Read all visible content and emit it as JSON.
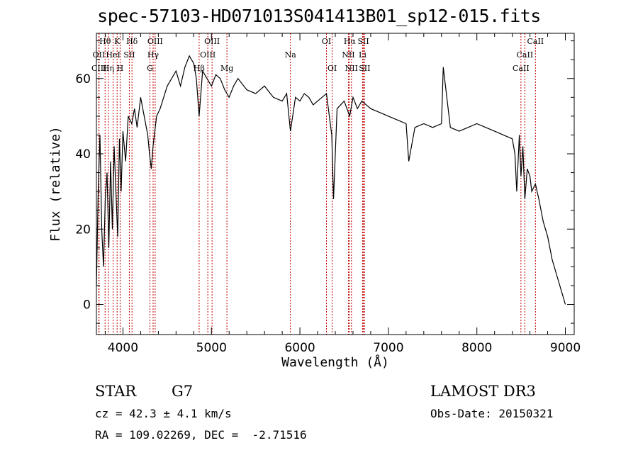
{
  "header": {
    "title": "spec-57103-HD071013S041413B01_sp12-015.fits"
  },
  "info": {
    "object_class": "STAR",
    "subclass": "G7",
    "survey": "LAMOST DR3",
    "redshift": "cz = 42.3 ± 4.1 km/s",
    "obs_date": "Obs-Date: 20150321",
    "coords": "RA = 109.02269, DEC =  -2.71516"
  },
  "chart_data": {
    "type": "line",
    "xlabel": "Wavelength (Å)",
    "ylabel": "Flux (relative)",
    "xlim": [
      3700,
      9100
    ],
    "ylim": [
      -8,
      72
    ],
    "x_ticks": [
      4000,
      5000,
      6000,
      7000,
      8000,
      9000
    ],
    "y_ticks": [
      0,
      20,
      40,
      60
    ],
    "grid": false,
    "series": [
      {
        "x": [
          3700,
          3720,
          3740,
          3760,
          3780,
          3800,
          3820,
          3840,
          3860,
          3880,
          3900,
          3920,
          3940,
          3960,
          3980,
          4000,
          4030,
          4060,
          4100,
          4130,
          4160,
          4200,
          4240,
          4280,
          4300,
          4320,
          4340,
          4380,
          4420,
          4460,
          4500,
          4550,
          4600,
          4650,
          4700,
          4750,
          4800,
          4830,
          4861,
          4900,
          4950,
          5000,
          5050,
          5100,
          5150,
          5200,
          5250,
          5300,
          5400,
          5500,
          5600,
          5700,
          5800,
          5850,
          5893,
          5950,
          6000,
          6050,
          6100,
          6150,
          6200,
          6250,
          6300,
          6360,
          6380,
          6420,
          6500,
          6563,
          6600,
          6650,
          6700,
          6750,
          6800,
          6900,
          7000,
          7100,
          7200,
          7230,
          7300,
          7400,
          7500,
          7600,
          7620,
          7700,
          7800,
          7900,
          8000,
          8100,
          8200,
          8300,
          8400,
          8430,
          8450,
          8480,
          8498,
          8520,
          8542,
          8570,
          8600,
          8620,
          8662,
          8700,
          8750,
          8800,
          8850,
          8900,
          8950,
          9000
        ],
        "y": [
          5,
          30,
          45,
          20,
          10,
          28,
          35,
          15,
          38,
          20,
          42,
          30,
          18,
          44,
          30,
          46,
          38,
          50,
          48,
          52,
          47,
          55,
          50,
          45,
          40,
          36,
          42,
          50,
          52,
          55,
          58,
          60,
          62,
          58,
          63,
          66,
          64,
          60,
          50,
          62,
          60,
          58,
          61,
          60,
          57,
          55,
          58,
          60,
          57,
          56,
          58,
          55,
          54,
          56,
          46,
          55,
          54,
          56,
          55,
          53,
          54,
          55,
          56,
          45,
          28,
          52,
          54,
          50,
          55,
          52,
          54,
          53,
          52,
          51,
          50,
          49,
          48,
          38,
          47,
          48,
          47,
          48,
          63,
          47,
          46,
          47,
          48,
          47,
          46,
          45,
          44,
          40,
          30,
          45,
          34,
          42,
          28,
          36,
          34,
          30,
          32,
          28,
          22,
          18,
          12,
          8,
          4,
          0
        ]
      }
    ],
    "line_markers": [
      {
        "label": "Hθ",
        "x": 3798,
        "row": 0
      },
      {
        "label": "K",
        "x": 3934,
        "row": 0
      },
      {
        "label": "Hδ",
        "x": 4102,
        "row": 0
      },
      {
        "label": "OIII",
        "x": 4364,
        "row": 0
      },
      {
        "label": "OIII",
        "x": 5007,
        "row": 0
      },
      {
        "label": "OI",
        "x": 6300,
        "row": 0
      },
      {
        "label": "Hα",
        "x": 6563,
        "row": 0
      },
      {
        "label": "SII",
        "x": 6717,
        "row": 0
      },
      {
        "label": "CaII",
        "x": 8662,
        "row": 0
      },
      {
        "label": "OII",
        "x": 3727,
        "row": 1
      },
      {
        "label": "HeI",
        "x": 3889,
        "row": 1
      },
      {
        "label": "SII",
        "x": 4072,
        "row": 1
      },
      {
        "label": "Hγ",
        "x": 4341,
        "row": 1
      },
      {
        "label": "OIII",
        "x": 4959,
        "row": 1
      },
      {
        "label": "Na",
        "x": 5893,
        "row": 1
      },
      {
        "label": "NII",
        "x": 6548,
        "row": 1
      },
      {
        "label": "Li",
        "x": 6708,
        "row": 1
      },
      {
        "label": "CaII",
        "x": 8542,
        "row": 1
      },
      {
        "label": "CIII",
        "x": 3730,
        "row": 2
      },
      {
        "label": "Hη",
        "x": 3835,
        "row": 2
      },
      {
        "label": "H",
        "x": 3968,
        "row": 2
      },
      {
        "label": "G",
        "x": 4305,
        "row": 2
      },
      {
        "label": "Hβ",
        "x": 4861,
        "row": 2
      },
      {
        "label": "Mg",
        "x": 5175,
        "row": 2
      },
      {
        "label": "OI",
        "x": 6364,
        "row": 2
      },
      {
        "label": "NII",
        "x": 6583,
        "row": 2
      },
      {
        "label": "SII",
        "x": 6731,
        "row": 2
      },
      {
        "label": "CaII",
        "x": 8498,
        "row": 2
      }
    ],
    "line_color": "#000000",
    "marker_color": "#c00000"
  }
}
